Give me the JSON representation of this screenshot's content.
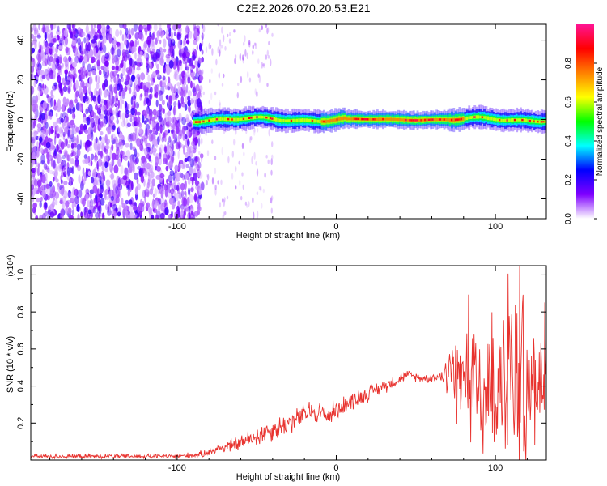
{
  "title": "C2E2.2026.070.20.53.E21",
  "chart_data": [
    {
      "type": "heatmap",
      "name": "spectrogram",
      "xlabel": "Height of straight line (km)",
      "ylabel": "Frequency (Hz)",
      "xlim": [
        -192,
        132
      ],
      "ylim": [
        -50,
        48
      ],
      "xticks": [
        -100,
        0,
        100
      ],
      "yticks": [
        -40,
        -20,
        0,
        20,
        40
      ],
      "colorbar": {
        "label": "Normalized spectral amplitude",
        "range": [
          0,
          1
        ],
        "ticks": [
          0.0,
          0.2,
          0.4,
          0.6,
          0.8
        ],
        "tick_labels": [
          "0.0",
          "0.2",
          "0.4",
          "0.6",
          "0.8"
        ],
        "colormap": [
          "#ffffff",
          "#7f00ff",
          "#0000ff",
          "#00ffff",
          "#00ff00",
          "#ffff00",
          "#ff8000",
          "#ff0000",
          "#ff1493"
        ]
      },
      "regions": [
        {
          "description": "broadband noise",
          "x_range": [
            -192,
            -90
          ],
          "freq_range": [
            -50,
            48
          ],
          "amplitude": "0.1-0.2"
        },
        {
          "description": "narrow signal line",
          "x_range": [
            -90,
            132
          ],
          "center_freq_hz": 0,
          "peak_amplitude": 0.95
        }
      ]
    },
    {
      "type": "line",
      "name": "snr",
      "xlabel": "Height of straight line (km)",
      "ylabel": "SNR (10 * v/v)",
      "multiplier": "(x10⁴)",
      "xlim": [
        -192,
        132
      ],
      "ylim": [
        0,
        1.05
      ],
      "xticks": [
        -100,
        0,
        100
      ],
      "yticks": [
        0.2,
        0.4,
        0.6,
        0.8,
        1.0
      ],
      "ytick_labels": [
        "0.2",
        "0.4",
        "0.6",
        "0.8",
        "1.0"
      ],
      "series": [
        {
          "name": "SNR",
          "color": "#e8322e",
          "x": [
            -192,
            -160,
            -130,
            -100,
            -85,
            -75,
            -65,
            -55,
            -45,
            -35,
            -25,
            -15,
            -5,
            5,
            15,
            25,
            35,
            45,
            55,
            65,
            72,
            80,
            90,
            100,
            110,
            120,
            132
          ],
          "y": [
            0.02,
            0.02,
            0.02,
            0.02,
            0.03,
            0.06,
            0.08,
            0.11,
            0.15,
            0.18,
            0.22,
            0.27,
            0.24,
            0.3,
            0.34,
            0.38,
            0.42,
            0.46,
            0.44,
            0.45,
            0.48,
            0.42,
            0.35,
            0.38,
            0.45,
            0.4,
            0.45
          ],
          "noise_amplitude": [
            0.01,
            0.01,
            0.01,
            0.01,
            0.015,
            0.02,
            0.03,
            0.04,
            0.05,
            0.05,
            0.05,
            0.05,
            0.05,
            0.04,
            0.04,
            0.03,
            0.03,
            0.02,
            0.02,
            0.02,
            0.15,
            0.25,
            0.3,
            0.35,
            0.4,
            0.35,
            0.25
          ]
        }
      ]
    }
  ]
}
